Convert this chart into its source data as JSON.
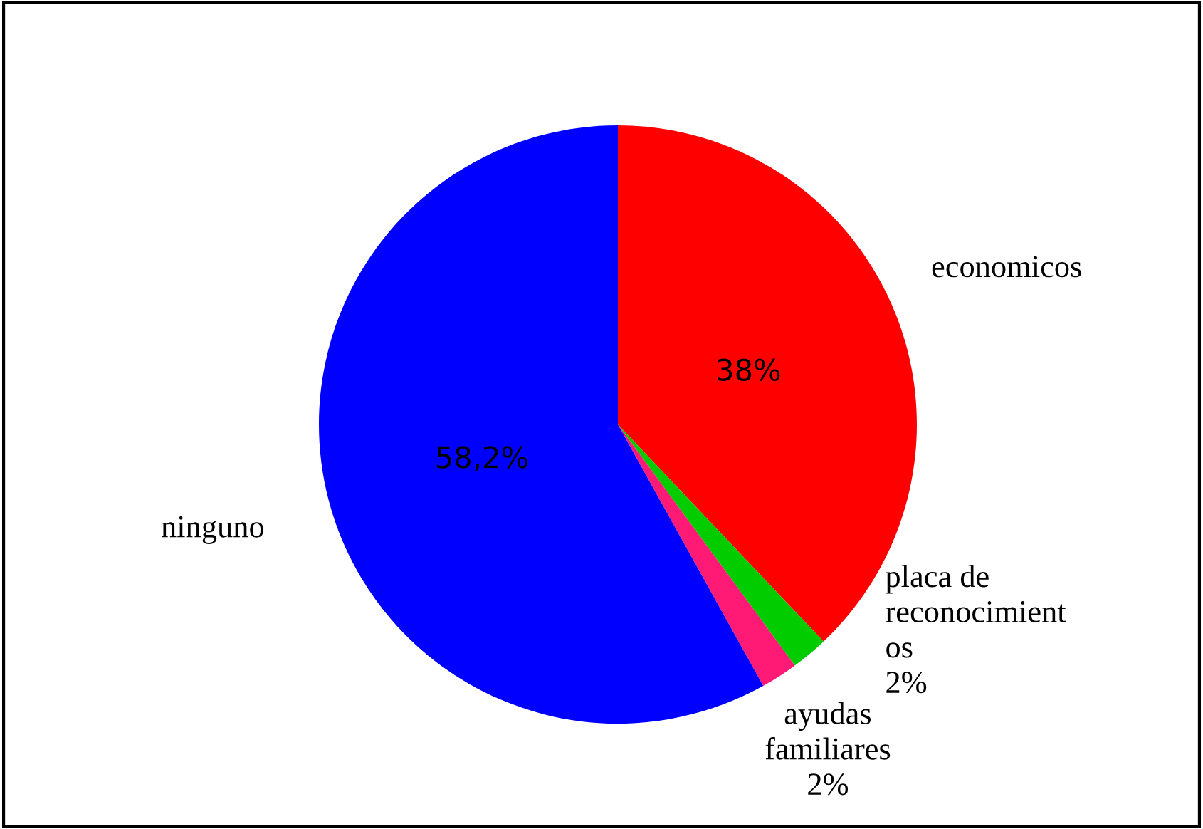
{
  "chart_data": {
    "type": "pie",
    "categories": [
      "economicos",
      "placa de\nreconocimient\nos",
      "ayudas\nfamiliares",
      "ninguno"
    ],
    "values": [
      38,
      2,
      2,
      58.2
    ],
    "colors": [
      "#ff0000",
      "#00cc00",
      "#ff1a75",
      "#0000ff"
    ],
    "value_labels": [
      "38%",
      "2%",
      "2%",
      "58,2%"
    ],
    "legend": false
  }
}
